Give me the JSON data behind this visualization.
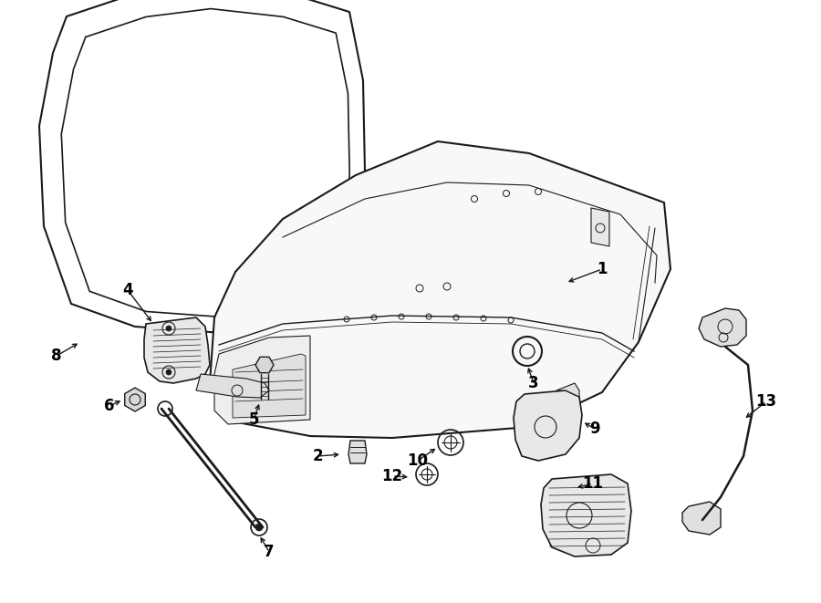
{
  "bg_color": "#ffffff",
  "line_color": "#1a1a1a",
  "label_color": "#000000",
  "fig_width": 9.0,
  "fig_height": 6.61,
  "dpi": 100
}
